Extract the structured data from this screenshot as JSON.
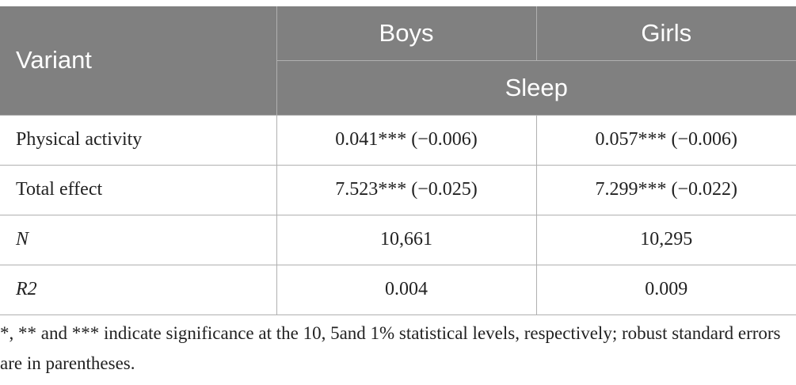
{
  "header": {
    "variant": "Variant",
    "groups": [
      "Boys",
      "Girls"
    ],
    "subheader": "Sleep"
  },
  "table": {
    "rows": [
      [
        "Physical activity",
        "0.041*** (−0.006)",
        "0.057*** (−0.006)"
      ],
      [
        "Total effect",
        "7.523*** (−0.025)",
        "7.299*** (−0.022)"
      ],
      [
        "N",
        "10,661",
        "10,295"
      ],
      [
        "R2",
        "0.004",
        "0.009"
      ]
    ]
  },
  "footnote": "*, ** and *** indicate significance at the 10, 5and 1% statistical levels, respectively; robust standard errors are in parentheses."
}
